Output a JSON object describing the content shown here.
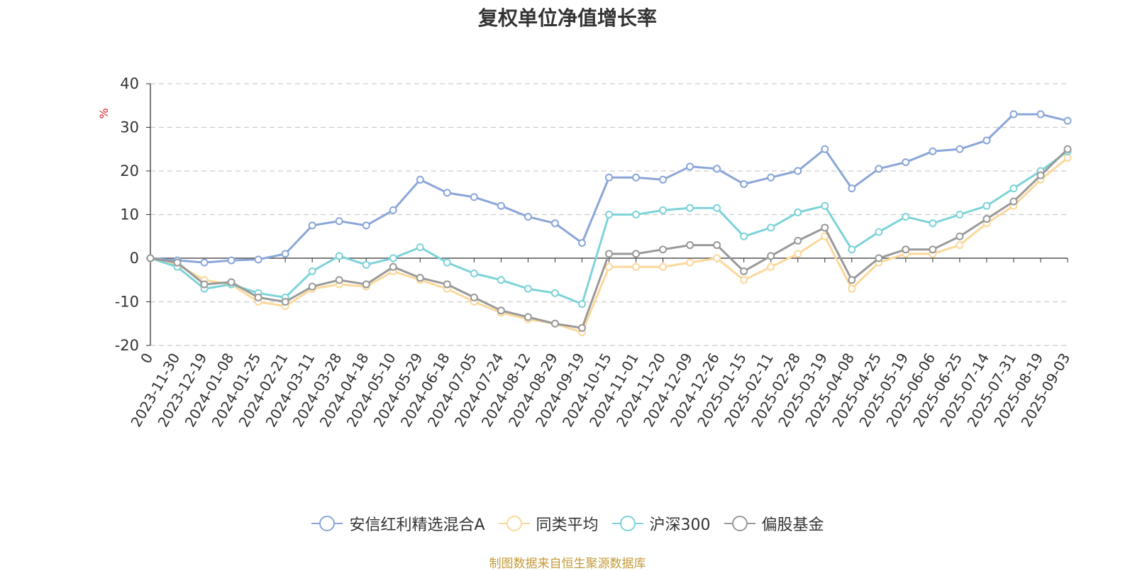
{
  "chart_data": {
    "type": "line",
    "title": "复权单位净值增长率",
    "ylabel": "%",
    "xlabel": "",
    "ylim": [
      -20,
      40
    ],
    "yticks": [
      40,
      30,
      20,
      10,
      0,
      -10,
      -20
    ],
    "grid": true,
    "legend_position": "bottom",
    "x": [
      "0",
      "2023-11-30",
      "2023-12-19",
      "2024-01-08",
      "2024-01-25",
      "2024-02-21",
      "2024-03-11",
      "2024-03-28",
      "2024-04-18",
      "2024-05-10",
      "2024-05-29",
      "2024-06-18",
      "2024-07-05",
      "2024-07-24",
      "2024-08-12",
      "2024-08-29",
      "2024-09-19",
      "2024-10-15",
      "2024-11-01",
      "2024-11-20",
      "2024-12-09",
      "2024-12-26",
      "2025-01-15",
      "2025-02-11",
      "2025-02-28",
      "2025-03-19",
      "2025-04-08",
      "2025-04-25",
      "2025-05-19",
      "2025-06-06",
      "2025-06-25",
      "2025-07-14",
      "2025-07-31",
      "2025-08-19",
      "2025-09-03"
    ],
    "series": [
      {
        "name": "安信红利精选混合A",
        "color": "#8aa6d8",
        "values": [
          0,
          -0.5,
          -1,
          -0.5,
          -0.3,
          1,
          7.5,
          8.5,
          7.5,
          11,
          18,
          15,
          14,
          12,
          9.5,
          8,
          3.5,
          18.5,
          18.5,
          18,
          21,
          20.5,
          17,
          18.5,
          20,
          25,
          16,
          20.5,
          22,
          24.5,
          25,
          27,
          33,
          33,
          31.5
        ]
      },
      {
        "name": "同类平均",
        "color": "#fbd89a",
        "values": [
          0,
          -1.5,
          -5,
          -6,
          -10,
          -11,
          -7,
          -6,
          -6.5,
          -3,
          -5,
          -7,
          -10,
          -12.5,
          -14,
          -15,
          -17,
          -2,
          -2,
          -2,
          -1,
          0,
          -5,
          -2,
          1,
          5,
          -7,
          -1,
          1,
          1,
          3,
          8,
          12,
          18,
          23
        ]
      },
      {
        "name": "沪深300",
        "color": "#7dd3d8",
        "values": [
          0,
          -2,
          -7,
          -6,
          -8,
          -9,
          -3,
          0.5,
          -1.5,
          0,
          2.5,
          -1,
          -3.5,
          -5,
          -7,
          -8,
          -10.5,
          10,
          10,
          11,
          11.5,
          11.5,
          5,
          7,
          10.5,
          12,
          2,
          6,
          9.5,
          8,
          10,
          12,
          16,
          20,
          24.5
        ]
      },
      {
        "name": "偏股基金",
        "color": "#999999",
        "values": [
          0,
          -1,
          -6,
          -5.5,
          -9,
          -10,
          -6.5,
          -5,
          -6,
          -2,
          -4.5,
          -6,
          -9,
          -12,
          -13.5,
          -15,
          -16,
          1,
          1,
          2,
          3,
          3,
          -3,
          0.5,
          4,
          7,
          -5,
          0,
          2,
          2,
          5,
          9,
          13,
          19,
          25
        ]
      }
    ]
  },
  "source_note": "制图数据来自恒生聚源数据库"
}
